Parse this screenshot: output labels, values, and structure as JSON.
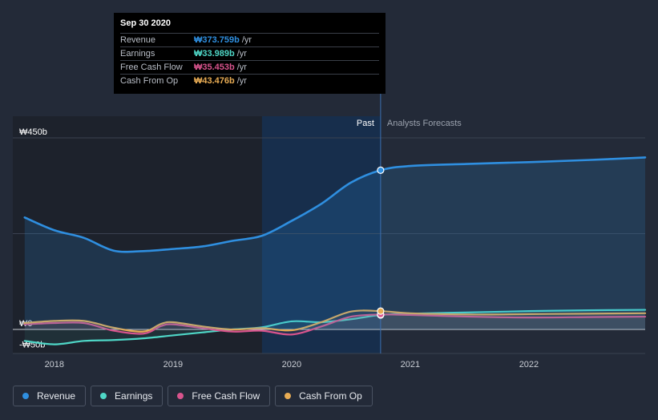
{
  "tooltip": {
    "date": "Sep 30 2020",
    "rows": [
      {
        "label": "Revenue",
        "value": "₩373.759b",
        "unit": "/yr",
        "color": "#2f8fe0"
      },
      {
        "label": "Earnings",
        "value": "₩33.989b",
        "unit": "/yr",
        "color": "#4fd7c7"
      },
      {
        "label": "Free Cash Flow",
        "value": "₩35.453b",
        "unit": "/yr",
        "color": "#d9548d"
      },
      {
        "label": "Cash From Op",
        "value": "₩43.476b",
        "unit": "/yr",
        "color": "#e8ac54"
      }
    ]
  },
  "labels": {
    "past": "Past",
    "forecast": "Analysts Forecasts"
  },
  "legend": [
    {
      "label": "Revenue",
      "color": "#2f8fe0"
    },
    {
      "label": "Earnings",
      "color": "#4fd7c7"
    },
    {
      "label": "Free Cash Flow",
      "color": "#d9548d"
    },
    {
      "label": "Cash From Op",
      "color": "#e8ac54"
    }
  ],
  "chart_data": {
    "type": "line",
    "title": "",
    "unit": "₩b",
    "ylim": [
      -50,
      450
    ],
    "y_ticks": [
      {
        "value": 450,
        "label": "₩450b"
      },
      {
        "value": 0,
        "label": "₩0"
      },
      {
        "value": -50,
        "label": "-₩50b"
      }
    ],
    "xlim": [
      2017.65,
      2022.98
    ],
    "x_ticks": [
      {
        "value": 2018,
        "label": "2018"
      },
      {
        "value": 2019,
        "label": "2019"
      },
      {
        "value": 2020,
        "label": "2020"
      },
      {
        "value": 2021,
        "label": "2021"
      },
      {
        "value": 2022,
        "label": "2022"
      }
    ],
    "past_end": 2020.75,
    "highlight_start": 2019.75,
    "series": [
      {
        "name": "Revenue",
        "color": "#2f8fe0",
        "x": [
          2017.75,
          2018.0,
          2018.25,
          2018.5,
          2018.75,
          2019.0,
          2019.25,
          2019.5,
          2019.75,
          2020.0,
          2020.25,
          2020.5,
          2020.75,
          2021.0,
          2021.5,
          2022.0,
          2022.5,
          2022.98
        ],
        "y": [
          263,
          233,
          215,
          185,
          184,
          189,
          195,
          208,
          220,
          255,
          295,
          345,
          374,
          384,
          389,
          393,
          398,
          404
        ]
      },
      {
        "name": "Earnings",
        "color": "#4fd7c7",
        "x": [
          2017.75,
          2018.0,
          2018.25,
          2018.5,
          2018.75,
          2019.0,
          2019.25,
          2019.5,
          2019.75,
          2020.0,
          2020.25,
          2020.5,
          2020.75,
          2021.0,
          2021.5,
          2022.0,
          2022.5,
          2022.98
        ],
        "y": [
          -27,
          -35,
          -27,
          -25,
          -21,
          -14,
          -7,
          0,
          5,
          19,
          17,
          24,
          34,
          37,
          40,
          43,
          45,
          46
        ]
      },
      {
        "name": "Free Cash Flow",
        "color": "#d9548d",
        "x": [
          2017.75,
          2018.0,
          2018.25,
          2018.5,
          2018.75,
          2018.9,
          2019.0,
          2019.25,
          2019.5,
          2019.75,
          2020.0,
          2020.25,
          2020.5,
          2020.75,
          2021.0,
          2021.5,
          2022.0,
          2022.5,
          2022.98
        ],
        "y": [
          12,
          15,
          15,
          -3,
          -10,
          8,
          12,
          3,
          -5,
          -3,
          -12,
          7,
          30,
          35,
          34,
          30,
          28,
          29,
          30
        ]
      },
      {
        "name": "Cash From Op",
        "color": "#e8ac54",
        "x": [
          2017.75,
          2018.0,
          2018.25,
          2018.5,
          2018.75,
          2018.9,
          2019.0,
          2019.25,
          2019.5,
          2019.75,
          2020.0,
          2020.25,
          2020.5,
          2020.75,
          2021.0,
          2021.5,
          2022.0,
          2022.5,
          2022.98
        ],
        "y": [
          15,
          20,
          20,
          4,
          -5,
          13,
          17,
          7,
          0,
          3,
          -2,
          17,
          42,
          43,
          38,
          35,
          36,
          37,
          38
        ]
      }
    ]
  }
}
